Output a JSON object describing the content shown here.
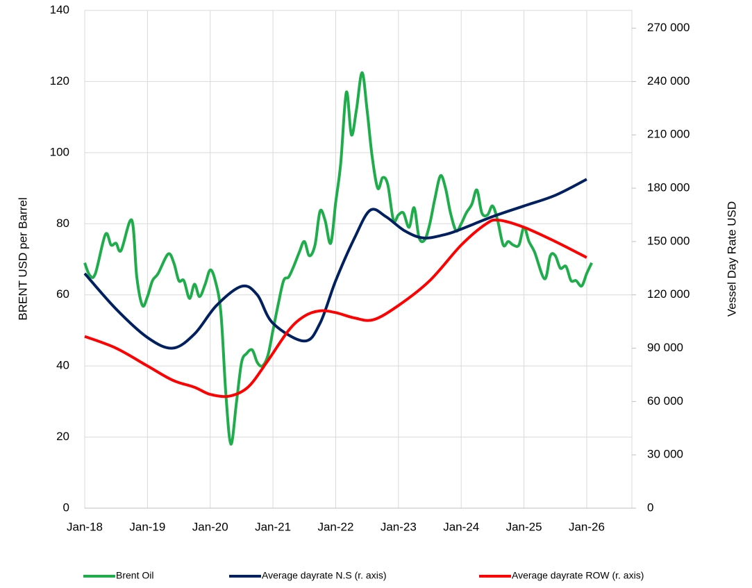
{
  "chart_data": {
    "type": "line",
    "ylabel": "BRENT USD per Barrel",
    "y2label": "Vessel Day Rate USD",
    "xlim": [
      2018,
      2026.72
    ],
    "xticks": [
      {
        "value": 2018,
        "label": "Jan-18"
      },
      {
        "value": 2019,
        "label": "Jan-19"
      },
      {
        "value": 2020,
        "label": "Jan-20"
      },
      {
        "value": 2021,
        "label": "Jan-21"
      },
      {
        "value": 2022,
        "label": "Jan-22"
      },
      {
        "value": 2023,
        "label": "Jan-23"
      },
      {
        "value": 2024,
        "label": "Jan-24"
      },
      {
        "value": 2025,
        "label": "Jan-25"
      },
      {
        "value": 2026,
        "label": "Jan-26"
      }
    ],
    "ylim": [
      0,
      140
    ],
    "yticks": [
      0,
      20,
      40,
      60,
      80,
      100,
      120,
      140
    ],
    "y2lim": [
      0,
      280000
    ],
    "y2ticks": [
      0,
      {
        "value": 30000,
        "label": "30 000"
      },
      {
        "value": 60000,
        "label": "60 000"
      },
      {
        "value": 90000,
        "label": "90 000"
      },
      {
        "value": 120000,
        "label": "120 000"
      },
      {
        "value": 150000,
        "label": "150 000"
      },
      {
        "value": 180000,
        "label": "180 000"
      },
      {
        "value": 210000,
        "label": "210 000"
      },
      {
        "value": 240000,
        "label": "240 000"
      },
      {
        "value": 270000,
        "label": "270 000"
      }
    ],
    "grid": true,
    "legend": "bottom",
    "series": [
      {
        "name": "Brent Oil",
        "color": "#1fad4c",
        "x": [
          2018.0,
          2018.08,
          2018.17,
          2018.33,
          2018.42,
          2018.5,
          2018.58,
          2018.75,
          2018.83,
          2018.92,
          2019.0,
          2019.08,
          2019.17,
          2019.33,
          2019.42,
          2019.5,
          2019.58,
          2019.67,
          2019.75,
          2019.83,
          2019.92,
          2020.0,
          2020.08,
          2020.17,
          2020.25,
          2020.33,
          2020.42,
          2020.5,
          2020.58,
          2020.67,
          2020.75,
          2020.83,
          2020.92,
          2021.0,
          2021.08,
          2021.17,
          2021.25,
          2021.33,
          2021.42,
          2021.5,
          2021.58,
          2021.67,
          2021.75,
          2021.83,
          2021.92,
          2022.0,
          2022.08,
          2022.17,
          2022.25,
          2022.33,
          2022.42,
          2022.5,
          2022.58,
          2022.67,
          2022.75,
          2022.83,
          2022.92,
          2023.0,
          2023.08,
          2023.17,
          2023.25,
          2023.33,
          2023.42,
          2023.5,
          2023.58,
          2023.67,
          2023.75,
          2023.83,
          2023.92,
          2024.0,
          2024.08,
          2024.17,
          2024.25,
          2024.33,
          2024.42,
          2024.5,
          2024.58,
          2024.67,
          2024.75,
          2024.83,
          2024.92,
          2025.0,
          2025.08,
          2025.17,
          2025.33,
          2025.42,
          2025.5,
          2025.58,
          2025.67,
          2025.75,
          2025.83,
          2025.92,
          2026.0,
          2026.08
        ],
        "values": [
          69,
          65.5,
          66,
          77,
          74,
          74.5,
          72.5,
          81,
          65,
          57,
          59.5,
          64,
          66,
          71.5,
          69,
          64,
          64,
          59,
          63,
          59.5,
          63,
          67,
          64,
          55,
          32,
          18,
          30,
          41,
          43.5,
          44.5,
          41,
          40,
          43,
          50,
          57,
          64,
          65,
          68,
          72,
          75,
          71,
          74,
          83.5,
          81,
          74.5,
          86,
          97,
          117,
          105,
          112,
          122.5,
          112,
          99,
          90,
          93,
          91,
          81,
          82.5,
          83,
          79,
          84.5,
          76,
          75.5,
          80,
          87,
          93.5,
          90,
          83,
          78,
          80,
          83,
          85.5,
          89.5,
          83,
          82.5,
          85,
          81,
          74,
          75,
          74,
          74,
          79,
          75,
          72,
          64.5,
          71,
          71,
          67.5,
          68,
          64,
          64,
          62.5,
          66,
          69
        ]
      },
      {
        "name": "Average dayrate N.S (r. axis)",
        "color": "#002060",
        "axis": "y2",
        "x": [
          2018.0,
          2018.5,
          2019.0,
          2019.4,
          2019.75,
          2020.1,
          2020.5,
          2020.75,
          2021.0,
          2021.5,
          2021.75,
          2022.0,
          2022.3,
          2022.55,
          2022.8,
          2023.1,
          2023.4,
          2023.75,
          2024.0,
          2024.5,
          2025.0,
          2025.5,
          2026.0
        ],
        "values": [
          132000,
          112000,
          96000,
          90000,
          98000,
          114000,
          124800,
          120000,
          104000,
          94000,
          104000,
          128000,
          152000,
          167600,
          164000,
          156000,
          152000,
          154000,
          157000,
          164000,
          170000,
          176000,
          185000
        ]
      },
      {
        "name": "Average dayrate ROW (r. axis)",
        "color": "#ff0000",
        "axis": "y2",
        "x": [
          2018.0,
          2018.5,
          2019.0,
          2019.4,
          2019.75,
          2020.0,
          2020.3,
          2020.6,
          2020.9,
          2021.25,
          2021.5,
          2021.75,
          2022.0,
          2022.3,
          2022.6,
          2023.0,
          2023.5,
          2024.0,
          2024.4,
          2024.6,
          2025.0,
          2025.5,
          2026.0
        ],
        "values": [
          96600,
          90000,
          80000,
          72000,
          68000,
          64000,
          63000,
          68000,
          82000,
          100000,
          108000,
          111000,
          110000,
          107000,
          106000,
          114000,
          128000,
          148000,
          160000,
          162000,
          158000,
          150000,
          141000
        ]
      }
    ]
  }
}
